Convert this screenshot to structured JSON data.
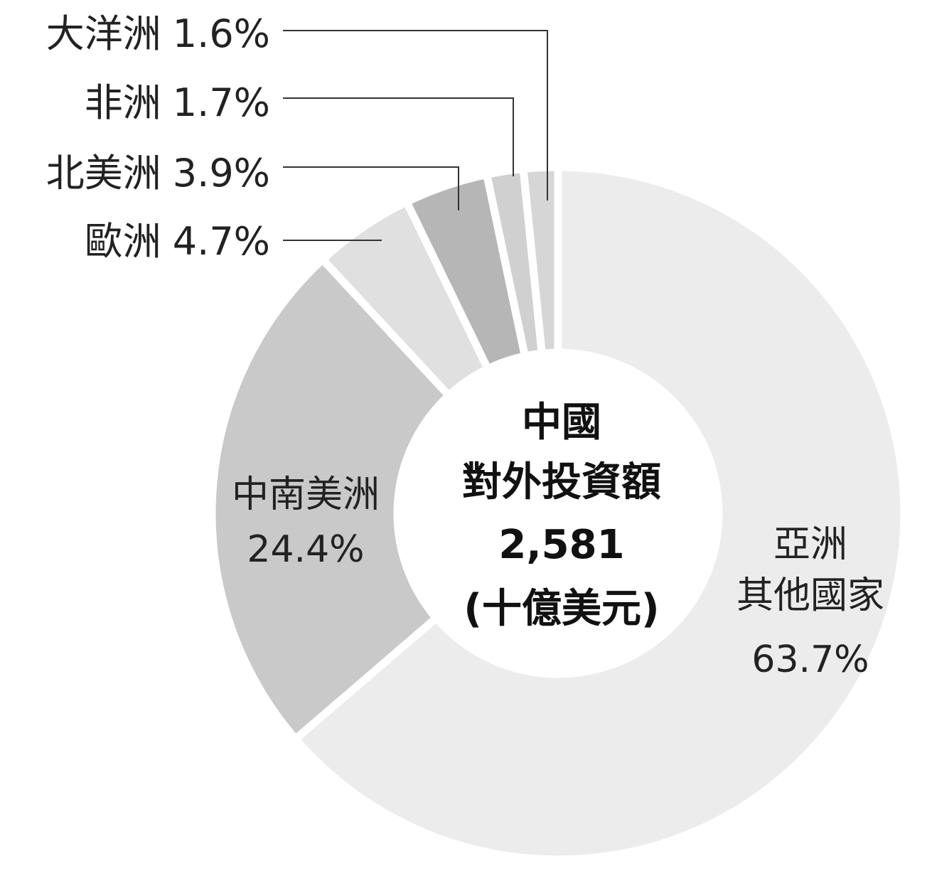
{
  "chart_data": {
    "type": "donut",
    "center_title": "中國\n對外投資額",
    "center_value": "2,581",
    "center_unit": "(十億美元)",
    "categories": [
      "亞洲\n其他國家",
      "中南美洲",
      "歐洲",
      "北美洲",
      "非洲",
      "大洋洲"
    ],
    "values": [
      63.7,
      24.4,
      4.7,
      3.9,
      1.7,
      1.6
    ],
    "value_labels": [
      "63.7%",
      "24.4%",
      "4.7%",
      "3.9%",
      "1.7%",
      "1.6%"
    ],
    "colors": [
      "#ececec",
      "#c9c9c9",
      "#e0e0e0",
      "#b6b6b6",
      "#d0d0d0",
      "#d6d6d6"
    ]
  }
}
